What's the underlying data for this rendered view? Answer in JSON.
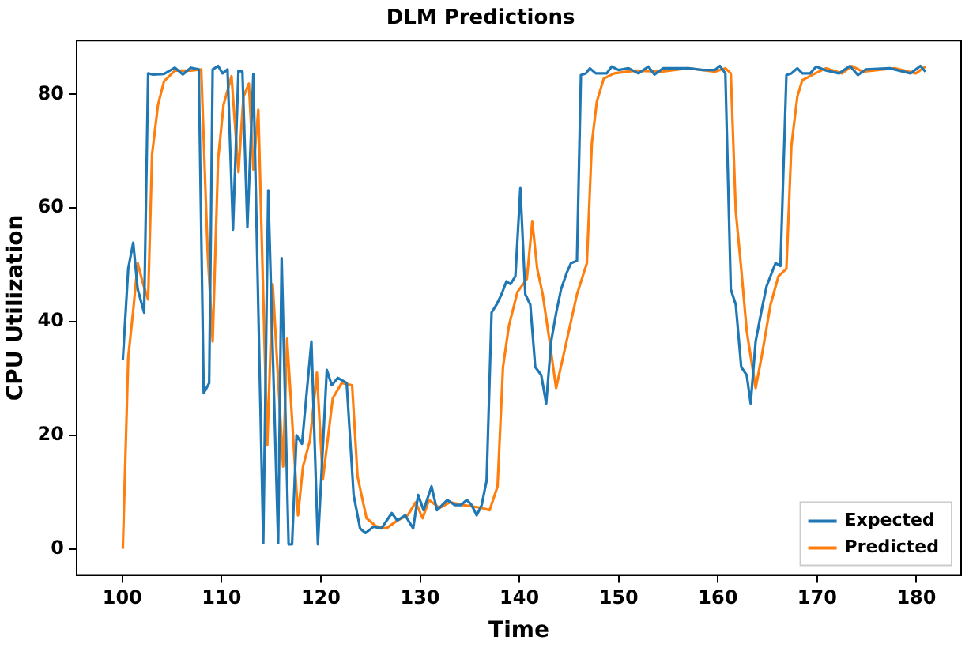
{
  "chart_data": {
    "type": "line",
    "title": "DLM Predictions",
    "xlabel": "Time",
    "ylabel": "CPU Utilization",
    "xlim": [
      95.4,
      184.5
    ],
    "ylim": [
      -4.6,
      89.5
    ],
    "xticks": [
      100,
      110,
      120,
      130,
      140,
      150,
      160,
      170,
      180
    ],
    "yticks": [
      0,
      20,
      40,
      60,
      80
    ],
    "grid": false,
    "legend": "bottom right",
    "marker": "none",
    "line_style": "solid",
    "series": [
      {
        "name": "Expected",
        "color": "#1f77b4",
        "x": [
          100.05,
          100.6,
          101.1,
          101.55,
          102.2,
          102.6,
          103.1,
          104.2,
          105.3,
          106.1,
          106.9,
          107.7,
          108.2,
          108.75,
          109.1,
          109.65,
          110.1,
          110.6,
          111.15,
          111.7,
          112.1,
          112.6,
          113.2,
          114.2,
          114.7,
          115.7,
          116.05,
          116.75,
          117.1,
          117.55,
          118.1,
          119.05,
          119.7,
          120.6,
          121.1,
          121.7,
          122.6,
          123.3,
          123.95,
          124.5,
          125.3,
          126.1,
          127.15,
          127.7,
          128.5,
          129.3,
          129.8,
          130.35,
          131.15,
          131.7,
          132.75,
          133.5,
          134.1,
          134.7,
          135.2,
          135.7,
          136.2,
          136.7,
          137.2,
          137.7,
          138.2,
          138.7,
          139.1,
          139.6,
          140.1,
          140.6,
          141.1,
          141.6,
          142.2,
          142.7,
          143.2,
          143.7,
          144.2,
          144.75,
          145.2,
          145.8,
          146.2,
          146.7,
          147.1,
          147.7,
          148.2,
          148.8,
          149.3,
          150,
          151,
          152,
          153,
          153.6,
          154.5,
          155.5,
          157,
          158.5,
          159.7,
          160.2,
          160.75,
          161.3,
          161.8,
          162.35,
          162.9,
          163.3,
          163.8,
          164.4,
          164.9,
          165.8,
          166.3,
          166.9,
          167.4,
          168,
          168.5,
          169.3,
          169.9,
          170.9,
          172.2,
          173.3,
          174.1,
          174.9,
          177.3,
          179.4,
          180.4,
          180.9
        ],
        "values": [
          33.3,
          49.4,
          53.9,
          45.7,
          41.6,
          83.7,
          83.5,
          83.6,
          84.7,
          83.5,
          84.7,
          84.4,
          27.4,
          29.2,
          84.4,
          85,
          83.7,
          84.4,
          56.2,
          84.2,
          84,
          56.6,
          83.6,
          1,
          63.1,
          1,
          51.2,
          0.8,
          0.8,
          20,
          18.5,
          36.5,
          0.8,
          31.5,
          28.8,
          30.1,
          29.2,
          9.5,
          3.6,
          2.8,
          3.9,
          3.6,
          6.3,
          5,
          5.9,
          3.6,
          9.5,
          6.8,
          11,
          6.8,
          8.6,
          7.7,
          7.7,
          8.6,
          7.7,
          5.9,
          7.7,
          12,
          41.6,
          43,
          44.8,
          47.1,
          46.6,
          48,
          63.5,
          44.8,
          43,
          32,
          30.6,
          25.6,
          36.5,
          41.5,
          45.7,
          48.5,
          50.3,
          50.7,
          83.4,
          83.7,
          84.6,
          83.7,
          83.7,
          83.7,
          84.9,
          84.3,
          84.6,
          83.7,
          84.9,
          83.5,
          84.6,
          84.6,
          84.6,
          84.3,
          84.3,
          85,
          83.7,
          45.7,
          43,
          32,
          30.6,
          25.6,
          36.5,
          42,
          46.2,
          50.3,
          49.8,
          83.4,
          83.7,
          84.6,
          83.7,
          83.7,
          84.9,
          84.2,
          83.7,
          85,
          83.4,
          84.4,
          84.6,
          83.7,
          85,
          84
        ]
      },
      {
        "name": "Predicted",
        "color": "#ff7f0e",
        "x": [
          100.05,
          100.6,
          101.1,
          101.55,
          102.1,
          102.6,
          103,
          103.6,
          104.2,
          105.3,
          106.1,
          106.9,
          107.95,
          108.6,
          109.1,
          109.65,
          110.2,
          111,
          111.7,
          112.2,
          112.75,
          113.2,
          113.7,
          114.6,
          115.15,
          116.2,
          116.6,
          117.7,
          118.2,
          118.9,
          119.6,
          120.2,
          121.2,
          122.1,
          123.15,
          123.7,
          124.6,
          125.55,
          126.6,
          127.7,
          128.75,
          129.55,
          130.25,
          130.9,
          131.95,
          133,
          134.35,
          136.2,
          137,
          137.8,
          138.35,
          138.95,
          139.8,
          140.75,
          141.3,
          141.8,
          142.35,
          143.05,
          143.7,
          144.75,
          145.8,
          146.8,
          147.3,
          147.8,
          148.5,
          149.55,
          151.7,
          154.35,
          157,
          159.7,
          160.75,
          161.3,
          161.8,
          162.35,
          162.9,
          163.8,
          164.4,
          165.3,
          166.1,
          166.9,
          167.4,
          168,
          168.5,
          169.8,
          170.9,
          172.5,
          173.5,
          174.6,
          177.8,
          179.95,
          180.9
        ],
        "values": [
          0,
          33.8,
          42,
          50.3,
          46.6,
          43.9,
          69.5,
          78.2,
          82.3,
          84.2,
          84.2,
          84.2,
          84.4,
          52.1,
          36.5,
          68.6,
          78.2,
          83.2,
          66.3,
          79.6,
          81.9,
          66.8,
          77.3,
          18.2,
          46.6,
          14.5,
          37,
          5.9,
          14.5,
          19.1,
          31,
          12.2,
          26.5,
          29.2,
          28.8,
          12.7,
          5.4,
          4,
          3.6,
          5,
          5.9,
          8.2,
          5.4,
          8.6,
          7.2,
          8.2,
          7.7,
          7.2,
          6.8,
          11,
          32,
          39.3,
          45.2,
          47.5,
          57.6,
          49.3,
          44.8,
          36.5,
          28.3,
          36.5,
          44.8,
          50.3,
          71.4,
          78.7,
          82.8,
          83.7,
          84.2,
          84,
          84.6,
          84,
          84.6,
          83.7,
          59.4,
          49.3,
          38.4,
          28.3,
          33.8,
          43,
          48,
          49.3,
          70.9,
          79.6,
          82.5,
          83.7,
          84.6,
          83.7,
          85,
          84,
          84.6,
          83.7,
          84.9
        ]
      }
    ]
  }
}
